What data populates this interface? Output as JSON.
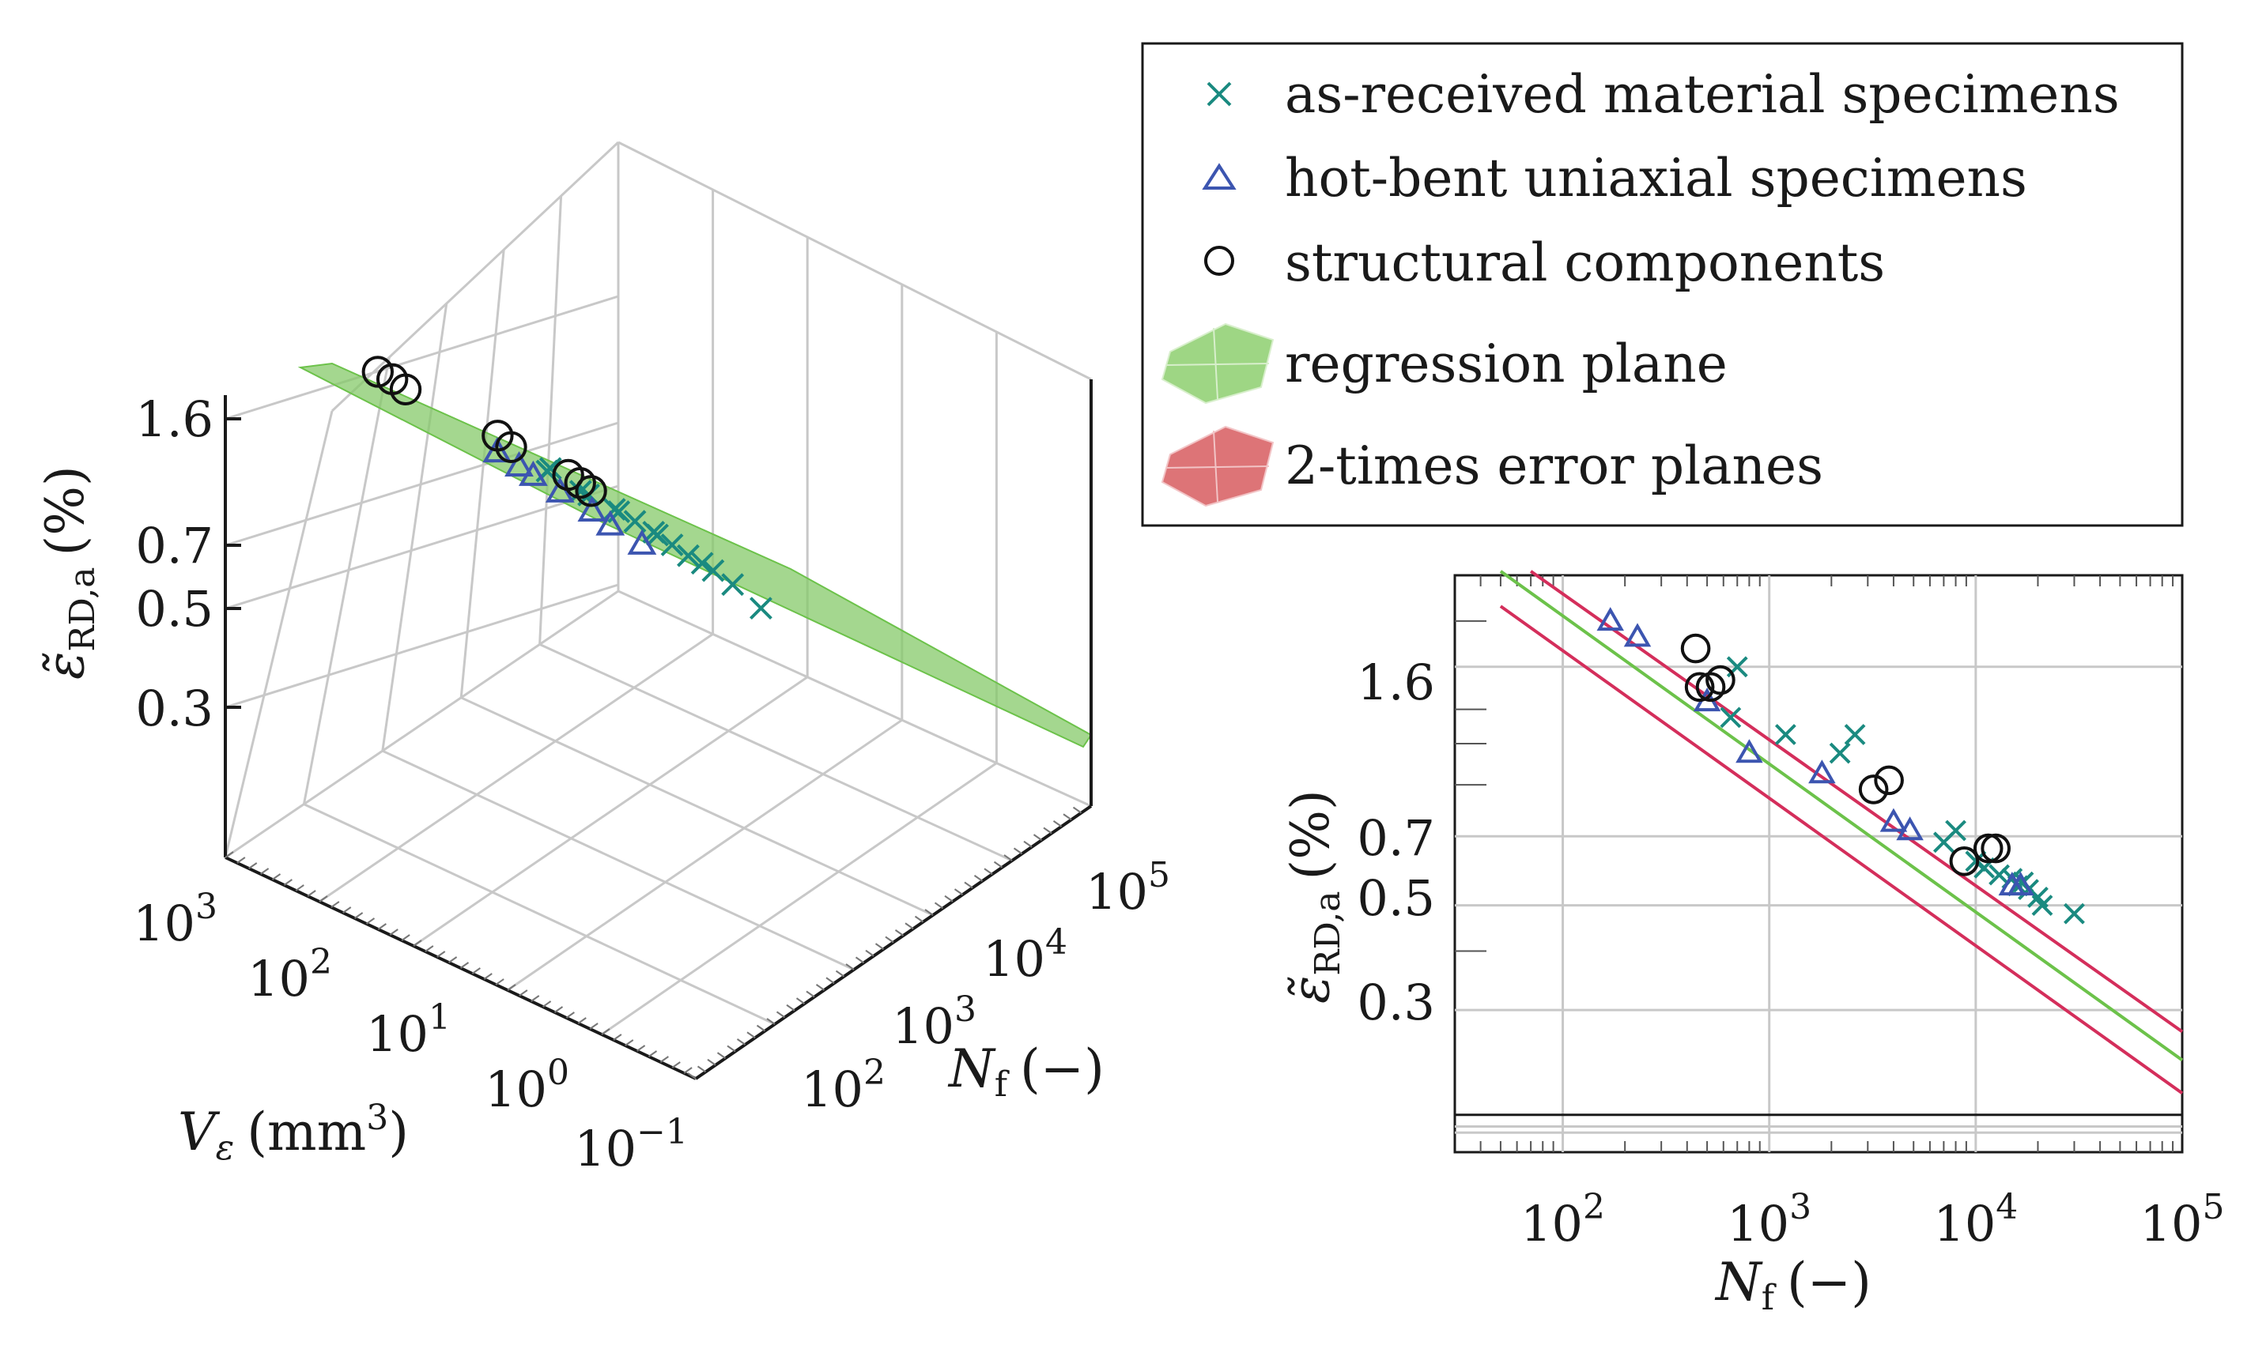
{
  "chart_data": [
    {
      "type": "scatter",
      "title": "",
      "xlabel": "N_f (−)",
      "ylabel": "ε̃_RD,a (%)",
      "zlabel": "V_ε (mm³)",
      "x_scale": "log",
      "y_scale": "log",
      "x_ticks": [
        "10^2",
        "10^3",
        "10^4",
        "10^5"
      ],
      "y_ticks": [
        "0.3",
        "0.5",
        "0.7",
        "1.6"
      ],
      "z_ticks": [
        "10^3",
        "10^2",
        "10^1",
        "10^0",
        "10^-1"
      ],
      "xlim": [
        100,
        100000
      ],
      "ylim": [
        0.15,
        2.5
      ],
      "zlim": [
        0.1,
        1000
      ],
      "series": [
        {
          "name": "as-received material specimens",
          "marker": "x",
          "points": [
            [
              700.0,
              1.55
            ],
            [
              750.0,
              1.45
            ],
            [
              1200.0,
              1.3
            ],
            [
              1500.0,
              1.25
            ],
            [
              1900.0,
              1.2
            ],
            [
              2300.0,
              1.15
            ],
            [
              2800.0,
              1.1
            ],
            [
              3500.0,
              1.05
            ],
            [
              4200.0,
              1.0
            ],
            [
              5000.0,
              0.95
            ],
            [
              6000.0,
              0.9
            ],
            [
              8000.0,
              0.85
            ],
            [
              10000.0,
              0.8
            ],
            [
              12000.0,
              0.75
            ],
            [
              20000.0,
              0.62
            ]
          ],
          "z_values": [
            0.3,
            0.5,
            0.4,
            0.6,
            0.3,
            0.5,
            0.4,
            0.3,
            0.5,
            0.4,
            0.3,
            0.4,
            0.5,
            0.3,
            0.4
          ]
        },
        {
          "name": "hot-bent uniaxial specimens",
          "marker": "triangle",
          "points": [
            [
              600.0,
              1.35
            ],
            [
              800.0,
              1.25
            ],
            [
              1100.0,
              1.15
            ],
            [
              1600.0,
              1.05
            ],
            [
              2500.0,
              0.95
            ],
            [
              3500.0,
              0.85
            ],
            [
              6000.0,
              0.75
            ]
          ],
          "z_values": [
            5,
            4,
            6,
            5,
            4,
            5,
            6
          ]
        },
        {
          "name": "structural components",
          "marker": "circle",
          "points": [
            [
              250.0,
              1.8
            ],
            [
              300.0,
              1.75
            ],
            [
              350.0,
              1.65
            ],
            [
              1100.0,
              1.4
            ],
            [
              1300.0,
              1.3
            ],
            [
              3000.0,
              1.15
            ],
            [
              3500.0,
              1.1
            ],
            [
              4000.0,
              1.05
            ]
          ],
          "z_values": [
            300,
            250,
            200,
            60,
            50,
            40,
            35,
            30
          ]
        }
      ],
      "surfaces": [
        {
          "name": "regression plane",
          "color": "#7dc05a"
        },
        {
          "name": "2-times error planes",
          "color": "#d66a6f"
        }
      ]
    },
    {
      "type": "scatter",
      "title": "",
      "xlabel": "N_f (−)",
      "ylabel": "ε̃_RD,a (%)",
      "x_scale": "log",
      "y_scale": "log",
      "xlim": [
        30,
        100000
      ],
      "ylim": [
        0.15,
        2.5
      ],
      "x_ticks": [
        "10^2",
        "10^3",
        "10^4",
        "10^5"
      ],
      "y_ticks": [
        "0.3",
        "0.5",
        "0.7",
        "1.6"
      ],
      "series": [
        {
          "name": "as-received material specimens",
          "marker": "x",
          "points": [
            [
              700,
              1.6
            ],
            [
              650,
              1.25
            ],
            [
              1200,
              1.15
            ],
            [
              2200,
              1.05
            ],
            [
              2600,
              1.15
            ],
            [
              8000,
              0.72
            ],
            [
              7000,
              0.68
            ],
            [
              10000,
              0.62
            ],
            [
              11000,
              0.6
            ],
            [
              13000,
              0.58
            ],
            [
              15000,
              0.57
            ],
            [
              16000,
              0.55
            ],
            [
              17000,
              0.56
            ],
            [
              18000,
              0.54
            ],
            [
              20000,
              0.52
            ],
            [
              21000,
              0.5
            ],
            [
              30000,
              0.48
            ]
          ]
        },
        {
          "name": "hot-bent uniaxial specimens",
          "marker": "triangle",
          "points": [
            [
              170,
              2.0
            ],
            [
              230,
              1.85
            ],
            [
              500,
              1.35
            ],
            [
              800,
              1.05
            ],
            [
              1800,
              0.95
            ],
            [
              4000,
              0.75
            ],
            [
              4800,
              0.72
            ],
            [
              15000,
              0.55
            ],
            [
              16500,
              0.55
            ]
          ]
        },
        {
          "name": "structural components",
          "marker": "circle",
          "points": [
            [
              440,
              1.75
            ],
            [
              460,
              1.45
            ],
            [
              520,
              1.45
            ],
            [
              580,
              1.5
            ],
            [
              3200,
              0.88
            ],
            [
              3800,
              0.92
            ],
            [
              8800,
              0.62
            ],
            [
              11500,
              0.66
            ],
            [
              12500,
              0.66
            ]
          ]
        }
      ],
      "lines": [
        {
          "name": "regression plane",
          "color": "#6cc24a",
          "from": [
            50,
            2.55
          ],
          "to": [
            100000,
            0.235
          ]
        },
        {
          "name": "2-times error plane upper",
          "color": "#d42e5b",
          "from": [
            70,
            2.55
          ],
          "to": [
            100000,
            0.27
          ]
        },
        {
          "name": "2-times error plane lower",
          "color": "#d42e5b",
          "from": [
            50,
            2.15
          ],
          "to": [
            100000,
            0.2
          ]
        }
      ]
    }
  ],
  "legend": {
    "items": [
      {
        "label": "as-received material specimens",
        "marker": "x",
        "color": "#1a8a80"
      },
      {
        "label": "hot-bent uniaxial specimens",
        "marker": "triangle",
        "color": "#3c55b0"
      },
      {
        "label": "structural components",
        "marker": "circle",
        "color": "#111111"
      },
      {
        "label": "regression plane",
        "marker": "patch",
        "color": "#9ed684"
      },
      {
        "label": "2-times error planes",
        "marker": "patch",
        "color": "#dd7477"
      }
    ]
  },
  "colors": {
    "asreceived": "#1a8a80",
    "hotbent": "#3c55b0",
    "structural": "#111111",
    "regression": "#6cc24a",
    "error": "#d42e5b",
    "grid": "#c8c8c8",
    "axis": "#1a1a1a"
  },
  "left_chart": {
    "ylabel_main": "ε̃",
    "ylabel_sub": "RD,a",
    "ylabel_unit": "(%)",
    "zlabel_main": "V",
    "zlabel_sub": "ε",
    "zlabel_unit": "(mm",
    "zlabel_sup": "3",
    "zlabel_close": ")",
    "xlabel_main": "N",
    "xlabel_sub": "f",
    "xlabel_unit": "(−)",
    "y_ticks": [
      "1.6",
      "0.7",
      "0.5",
      "0.3"
    ],
    "z_ticks": [
      {
        "base": "10",
        "exp": "3"
      },
      {
        "base": "10",
        "exp": "2"
      },
      {
        "base": "10",
        "exp": "1"
      },
      {
        "base": "10",
        "exp": "0"
      },
      {
        "base": "10",
        "exp": "−1"
      }
    ],
    "x_ticks": [
      {
        "base": "10",
        "exp": "2"
      },
      {
        "base": "10",
        "exp": "3"
      },
      {
        "base": "10",
        "exp": "4"
      },
      {
        "base": "10",
        "exp": "5"
      }
    ]
  },
  "right_chart": {
    "ylabel_main": "ε̃",
    "ylabel_sub": "RD,a",
    "ylabel_unit": "(%)",
    "xlabel_main": "N",
    "xlabel_sub": "f",
    "xlabel_unit": "(−)",
    "y_ticks": [
      "1.6",
      "0.7",
      "0.5",
      "0.3"
    ],
    "x_ticks": [
      {
        "base": "10",
        "exp": "2"
      },
      {
        "base": "10",
        "exp": "3"
      },
      {
        "base": "10",
        "exp": "4"
      },
      {
        "base": "10",
        "exp": "5"
      }
    ]
  }
}
